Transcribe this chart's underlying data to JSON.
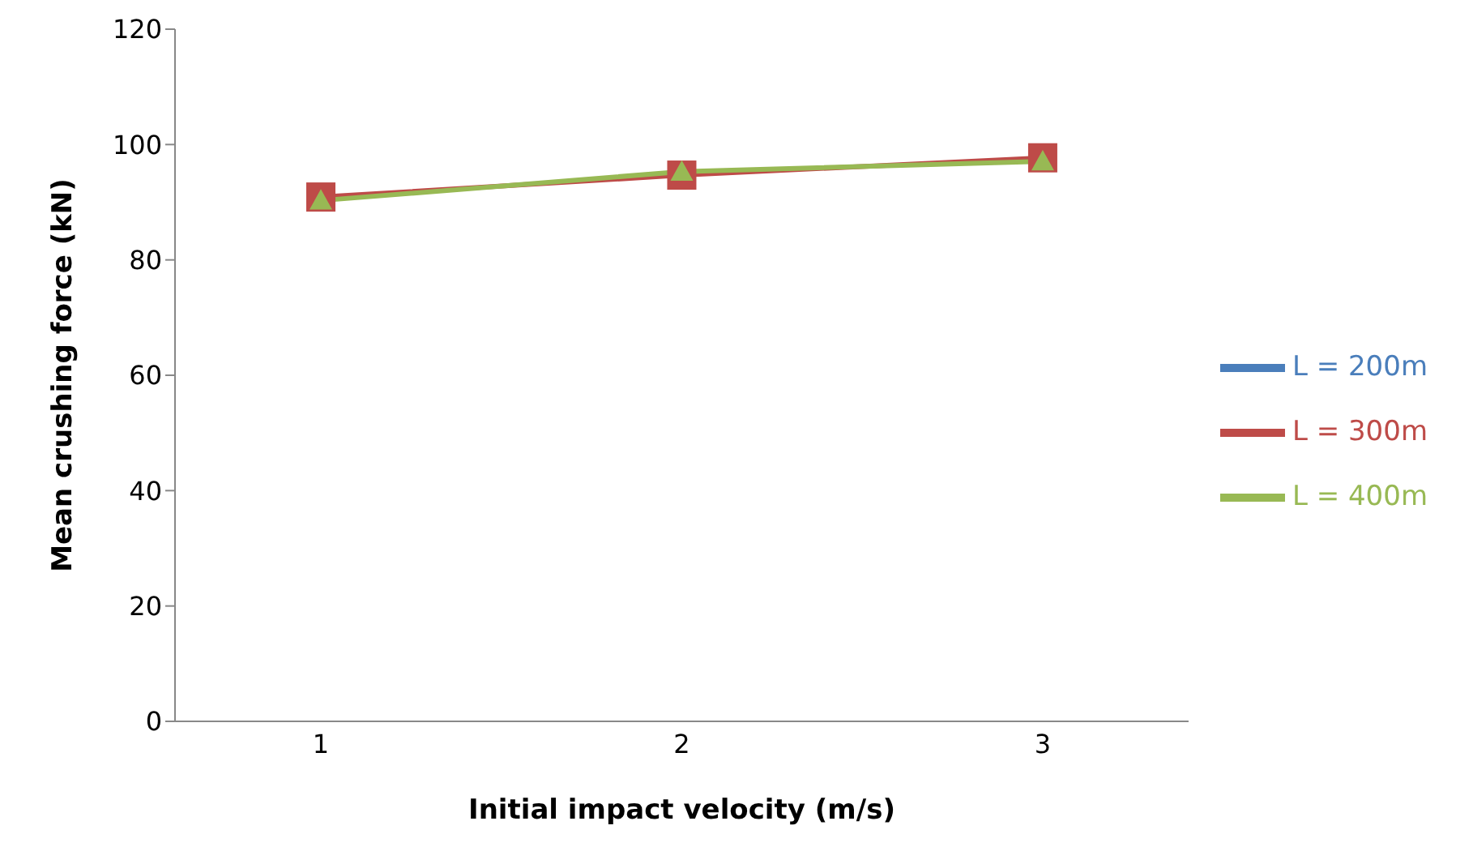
{
  "chart_data": {
    "type": "line",
    "xlabel": "Initial impact velocity (m/s)",
    "ylabel": "Mean crushing force (kN)",
    "categories": [
      "1",
      "2",
      "3"
    ],
    "series": [
      {
        "name": "L = 200m",
        "color": "#4a7ebb",
        "marker": "diamond",
        "values": [
          null,
          null,
          null
        ]
      },
      {
        "name": "L = 300m",
        "color": "#be4b48",
        "marker": "square",
        "values": [
          90.9,
          94.7,
          97.7
        ]
      },
      {
        "name": "L = 400m",
        "color": "#98b954",
        "marker": "triangle",
        "values": [
          90.3,
          95.3,
          97.1
        ]
      }
    ],
    "ylim": [
      0,
      120
    ],
    "yticks": [
      0,
      20,
      40,
      60,
      80,
      100,
      120
    ],
    "grid": false,
    "legend": "right"
  }
}
